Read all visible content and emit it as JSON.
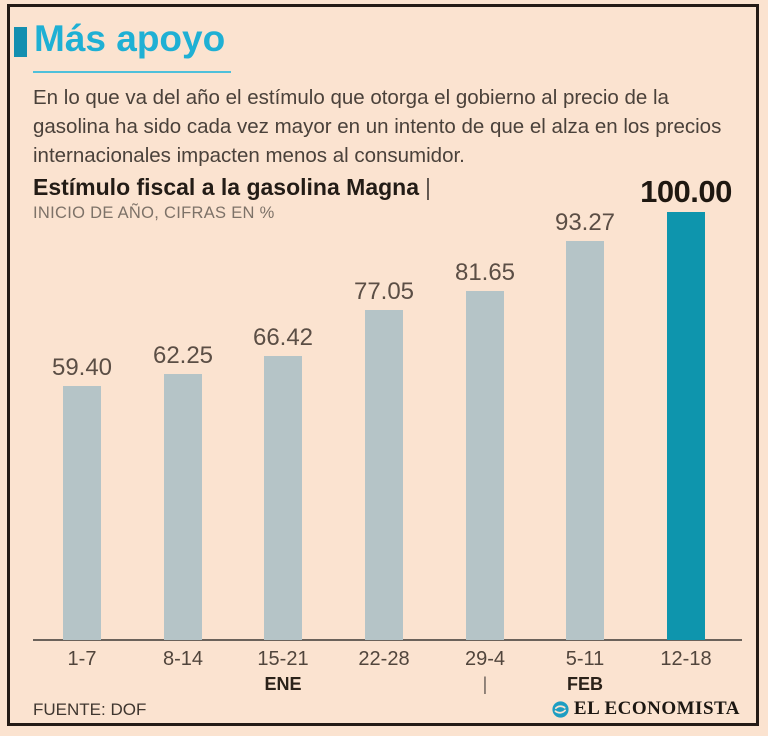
{
  "header": {
    "title": "Más apoyo",
    "description": "En lo que va del año el estímulo que otorga el gobierno al precio de la gasolina ha sido cada vez mayor en un intento de que el alza en los precios internacionales impacten menos al consumidor."
  },
  "chart": {
    "title": "Estímulo fiscal a la gasolina Magna",
    "title_separator": "|",
    "subtitle": "INICIO DE AÑO, CIFRAS EN %"
  },
  "chart_data": {
    "type": "bar",
    "title": "Estímulo fiscal a la gasolina Magna",
    "subtitle": "INICIO DE AÑO, CIFRAS EN %",
    "categories": [
      "1-7",
      "8-14",
      "15-21",
      "22-28",
      "29-4",
      "5-11",
      "12-18"
    ],
    "values": [
      59.4,
      62.25,
      66.42,
      77.05,
      81.65,
      93.27,
      100.0
    ],
    "value_labels": [
      "59.40",
      "62.25",
      "66.42",
      "77.05",
      "81.65",
      "93.27",
      "100.00"
    ],
    "month_row": [
      "",
      "",
      "ENE",
      "",
      "|",
      "FEB",
      ""
    ],
    "highlight_index": 6,
    "bar_color": "#b5c4c7",
    "highlight_color": "#0e95ad",
    "ylim": [
      0,
      100
    ],
    "grid": false,
    "legend": false
  },
  "footer": {
    "source": "FUENTE: DOF",
    "brand": "EL ECONOMISTA"
  },
  "colors": {
    "background": "#fbe3d0",
    "frame_border": "#241b16",
    "title_cyan": "#1fb0d4",
    "marker_teal": "#148fb0",
    "bar_gray": "#b5c4c7",
    "bar_teal": "#0e95ad",
    "text_dark": "#231c16",
    "text_gray": "#7d7268"
  }
}
